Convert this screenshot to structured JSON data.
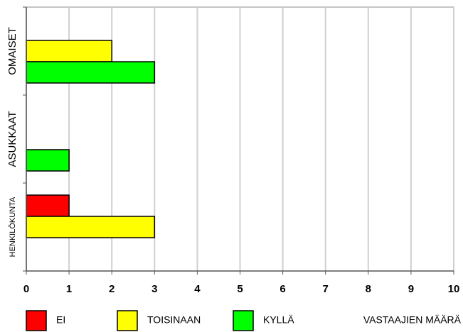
{
  "chart_data": {
    "type": "bar",
    "orientation": "horizontal",
    "categories": [
      "OMAISET",
      "ASUKKAAT",
      "HENKILÖKUNTA"
    ],
    "series": [
      {
        "name": "EI",
        "color": "#ff0000",
        "values": [
          0,
          0,
          1
        ]
      },
      {
        "name": "TOISINAAN",
        "color": "#ffff00",
        "values": [
          2,
          0,
          3
        ]
      },
      {
        "name": "KYLLÄ",
        "color": "#00ff00",
        "values": [
          3,
          1,
          0
        ]
      }
    ],
    "xlabel": "VASTAAJIEN MÄÄRÄ",
    "xlim": [
      0,
      10
    ],
    "xticks": [
      0,
      1,
      2,
      3,
      4,
      5,
      6,
      7,
      8,
      9,
      10
    ],
    "grid": true
  }
}
